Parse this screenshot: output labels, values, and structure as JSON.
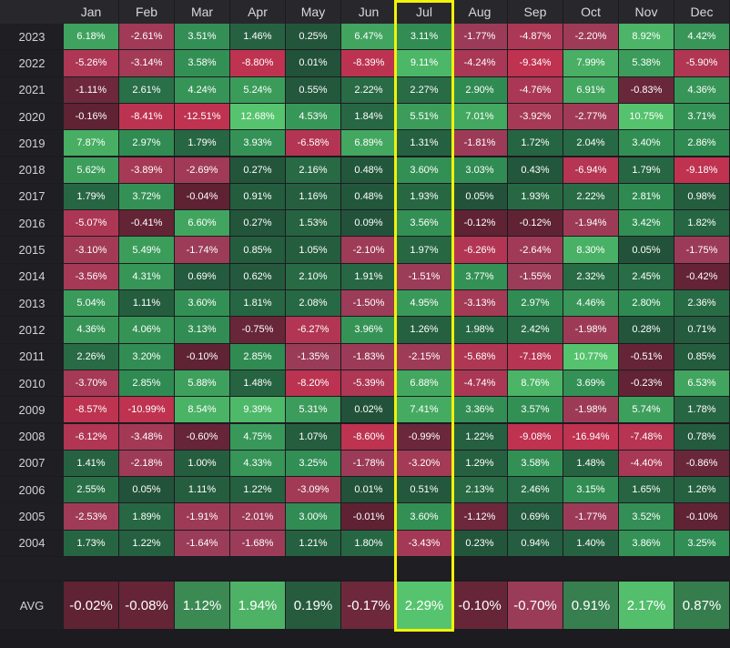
{
  "chart_data": {
    "type": "heatmap",
    "columns": [
      "Jan",
      "Feb",
      "Mar",
      "Apr",
      "May",
      "Jun",
      "Jul",
      "Aug",
      "Sep",
      "Oct",
      "Nov",
      "Dec"
    ],
    "highlighted_column": "Jul",
    "rows": [
      {
        "year": "2023",
        "values": [
          "6.18%",
          "-2.61%",
          "3.51%",
          "1.46%",
          "0.25%",
          "6.47%",
          "3.11%",
          "-1.77%",
          "-4.87%",
          "-2.20%",
          "8.92%",
          "4.42%"
        ]
      },
      {
        "year": "2022",
        "values": [
          "-5.26%",
          "-3.14%",
          "3.58%",
          "-8.80%",
          "0.01%",
          "-8.39%",
          "9.11%",
          "-4.24%",
          "-9.34%",
          "7.99%",
          "5.38%",
          "-5.90%"
        ]
      },
      {
        "year": "2021",
        "values": [
          "-1.11%",
          "2.61%",
          "4.24%",
          "5.24%",
          "0.55%",
          "2.22%",
          "2.27%",
          "2.90%",
          "-4.76%",
          "6.91%",
          "-0.83%",
          "4.36%"
        ]
      },
      {
        "year": "2020",
        "values": [
          "-0.16%",
          "-8.41%",
          "-12.51%",
          "12.68%",
          "4.53%",
          "1.84%",
          "5.51%",
          "7.01%",
          "-3.92%",
          "-2.77%",
          "10.75%",
          "3.71%"
        ]
      },
      {
        "year": "2019",
        "values": [
          "7.87%",
          "2.97%",
          "1.79%",
          "3.93%",
          "-6.58%",
          "6.89%",
          "1.31%",
          "-1.81%",
          "1.72%",
          "2.04%",
          "3.40%",
          "2.86%"
        ]
      },
      {
        "year": "2018",
        "values": [
          "5.62%",
          "-3.89%",
          "-2.69%",
          "0.27%",
          "2.16%",
          "0.48%",
          "3.60%",
          "3.03%",
          "0.43%",
          "-6.94%",
          "1.79%",
          "-9.18%"
        ]
      },
      {
        "year": "2017",
        "values": [
          "1.79%",
          "3.72%",
          "-0.04%",
          "0.91%",
          "1.16%",
          "0.48%",
          "1.93%",
          "0.05%",
          "1.93%",
          "2.22%",
          "2.81%",
          "0.98%"
        ]
      },
      {
        "year": "2016",
        "values": [
          "-5.07%",
          "-0.41%",
          "6.60%",
          "0.27%",
          "1.53%",
          "0.09%",
          "3.56%",
          "-0.12%",
          "-0.12%",
          "-1.94%",
          "3.42%",
          "1.82%"
        ]
      },
      {
        "year": "2015",
        "values": [
          "-3.10%",
          "5.49%",
          "-1.74%",
          "0.85%",
          "1.05%",
          "-2.10%",
          "1.97%",
          "-6.26%",
          "-2.64%",
          "8.30%",
          "0.05%",
          "-1.75%"
        ]
      },
      {
        "year": "2014",
        "values": [
          "-3.56%",
          "4.31%",
          "0.69%",
          "0.62%",
          "2.10%",
          "1.91%",
          "-1.51%",
          "3.77%",
          "-1.55%",
          "2.32%",
          "2.45%",
          "-0.42%"
        ]
      },
      {
        "year": "2013",
        "values": [
          "5.04%",
          "1.11%",
          "3.60%",
          "1.81%",
          "2.08%",
          "-1.50%",
          "4.95%",
          "-3.13%",
          "2.97%",
          "4.46%",
          "2.80%",
          "2.36%"
        ]
      },
      {
        "year": "2012",
        "values": [
          "4.36%",
          "4.06%",
          "3.13%",
          "-0.75%",
          "-6.27%",
          "3.96%",
          "1.26%",
          "1.98%",
          "2.42%",
          "-1.98%",
          "0.28%",
          "0.71%"
        ]
      },
      {
        "year": "2011",
        "values": [
          "2.26%",
          "3.20%",
          "-0.10%",
          "2.85%",
          "-1.35%",
          "-1.83%",
          "-2.15%",
          "-5.68%",
          "-7.18%",
          "10.77%",
          "-0.51%",
          "0.85%"
        ]
      },
      {
        "year": "2010",
        "values": [
          "-3.70%",
          "2.85%",
          "5.88%",
          "1.48%",
          "-8.20%",
          "-5.39%",
          "6.88%",
          "-4.74%",
          "8.76%",
          "3.69%",
          "-0.23%",
          "6.53%"
        ]
      },
      {
        "year": "2009",
        "values": [
          "-8.57%",
          "-10.99%",
          "8.54%",
          "9.39%",
          "5.31%",
          "0.02%",
          "7.41%",
          "3.36%",
          "3.57%",
          "-1.98%",
          "5.74%",
          "1.78%"
        ]
      },
      {
        "year": "2008",
        "values": [
          "-6.12%",
          "-3.48%",
          "-0.60%",
          "4.75%",
          "1.07%",
          "-8.60%",
          "-0.99%",
          "1.22%",
          "-9.08%",
          "-16.94%",
          "-7.48%",
          "0.78%"
        ]
      },
      {
        "year": "2007",
        "values": [
          "1.41%",
          "-2.18%",
          "1.00%",
          "4.33%",
          "3.25%",
          "-1.78%",
          "-3.20%",
          "1.29%",
          "3.58%",
          "1.48%",
          "-4.40%",
          "-0.86%"
        ]
      },
      {
        "year": "2006",
        "values": [
          "2.55%",
          "0.05%",
          "1.11%",
          "1.22%",
          "-3.09%",
          "0.01%",
          "0.51%",
          "2.13%",
          "2.46%",
          "3.15%",
          "1.65%",
          "1.26%"
        ]
      },
      {
        "year": "2005",
        "values": [
          "-2.53%",
          "1.89%",
          "-1.91%",
          "-2.01%",
          "3.00%",
          "-0.01%",
          "3.60%",
          "-1.12%",
          "0.69%",
          "-1.77%",
          "3.52%",
          "-0.10%"
        ]
      },
      {
        "year": "2004",
        "values": [
          "1.73%",
          "1.22%",
          "-1.64%",
          "-1.68%",
          "1.21%",
          "1.80%",
          "-3.43%",
          "0.23%",
          "0.94%",
          "1.40%",
          "3.86%",
          "3.25%"
        ]
      }
    ],
    "avg": {
      "label": "AVG",
      "values": [
        "-0.02%",
        "-0.08%",
        "1.12%",
        "1.94%",
        "0.19%",
        "-0.17%",
        "2.29%",
        "-0.10%",
        "-0.70%",
        "0.91%",
        "2.17%",
        "0.87%"
      ]
    },
    "colors": {
      "background": "#1c1b20",
      "header_bg": "#28272c",
      "neg_light": "#9a3c58",
      "neg_dark": "#5e2233",
      "neg_strong": "#c8304e",
      "pos_dark": "#22523a",
      "pos_light": "#2f8a52",
      "pos_strong": "#56c46e",
      "highlight": "#f2f20a"
    }
  }
}
